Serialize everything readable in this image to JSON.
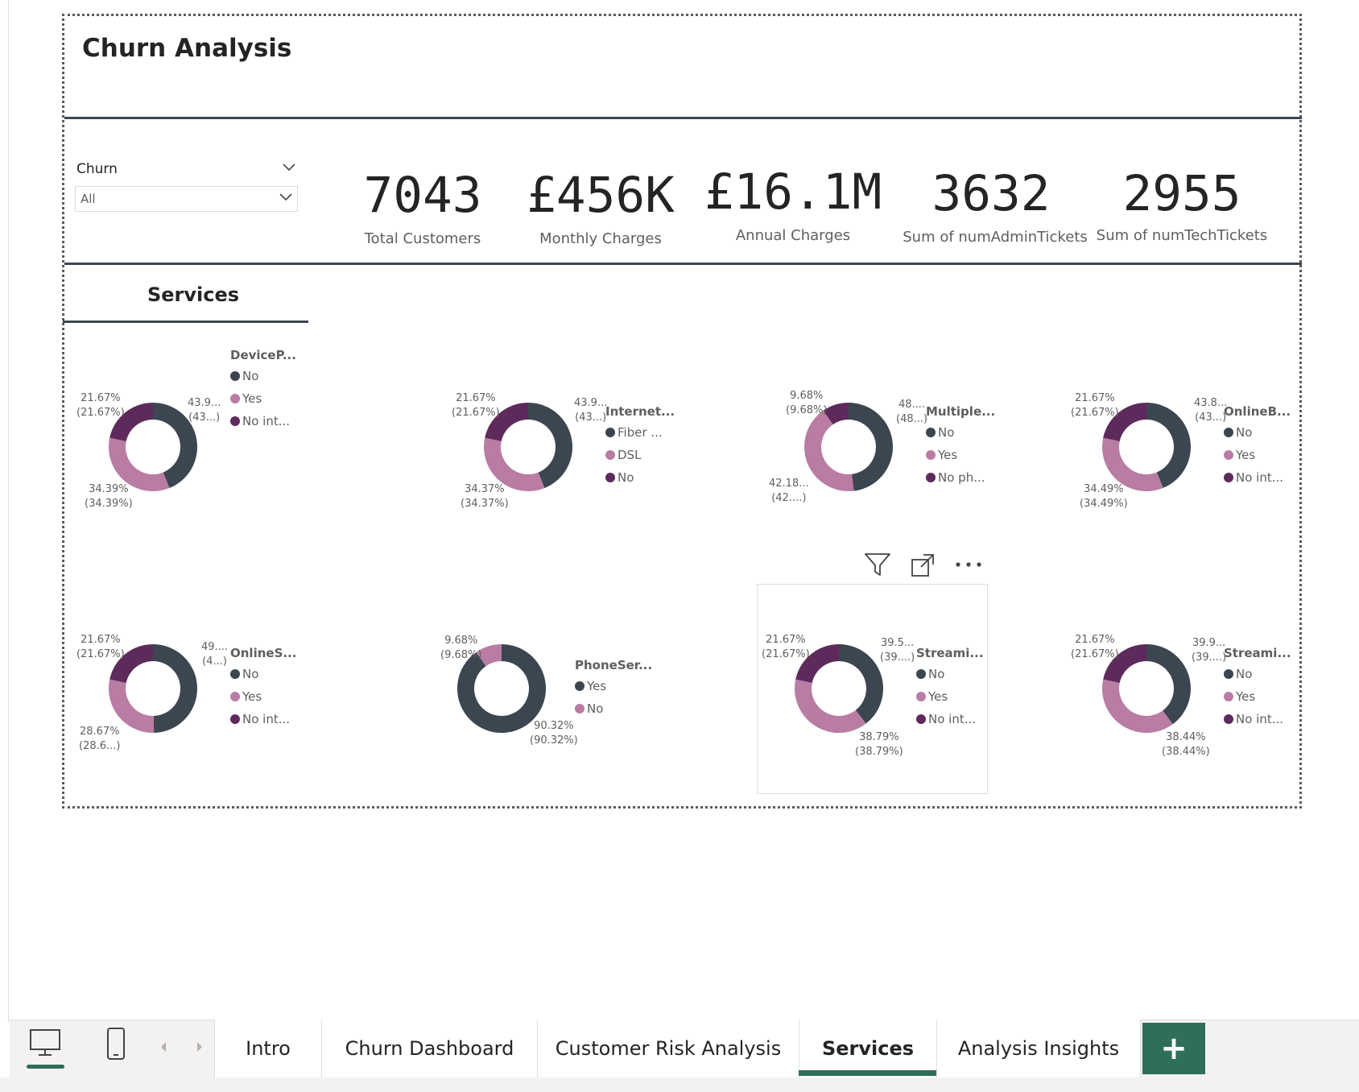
{
  "report": {
    "title": "Churn Analysis"
  },
  "slicer": {
    "title": "Churn",
    "value": "All"
  },
  "kpis": [
    {
      "value": "7043",
      "label": "Total Customers"
    },
    {
      "value": "£456K",
      "label": "Monthly Charges"
    },
    {
      "value": "£16.1M",
      "label": "Annual Charges"
    },
    {
      "value": "3632",
      "label": "Sum of numAdminTickets"
    },
    {
      "value": "2955",
      "label": "Sum of numTechTickets"
    }
  ],
  "section": {
    "title": "Services"
  },
  "colors": {
    "dark": "#3b4650",
    "pink": "#b97ca3",
    "purple": "#5e2a5b",
    "accent": "#2f6e5a"
  },
  "chart_data": [
    {
      "type": "pie",
      "legend_title": "DeviceP...",
      "categories": [
        "No",
        "Yes",
        "No int..."
      ],
      "values": [
        43.94,
        34.39,
        21.67
      ],
      "labels": [
        [
          "43.9...",
          "(43...)"
        ],
        [
          "34.39%",
          "(34.39%)"
        ],
        [
          "21.67%",
          "(21.67%)"
        ]
      ]
    },
    {
      "type": "pie",
      "legend_title": "Internet...",
      "categories": [
        "Fiber ...",
        "DSL",
        "No"
      ],
      "values": [
        43.96,
        34.37,
        21.67
      ],
      "labels": [
        [
          "43.9...",
          "(43...)"
        ],
        [
          "34.37%",
          "(34.37%)"
        ],
        [
          "21.67%",
          "(21.67%)"
        ]
      ]
    },
    {
      "type": "pie",
      "legend_title": "Multiple...",
      "categories": [
        "No",
        "Yes",
        "No ph..."
      ],
      "values": [
        48.13,
        42.18,
        9.68
      ],
      "labels": [
        [
          "48....",
          "(48...)"
        ],
        [
          "42.18...",
          "(42....)"
        ],
        [
          "9.68%",
          "(9.68%)"
        ]
      ]
    },
    {
      "type": "pie",
      "legend_title": "OnlineB...",
      "categories": [
        "No",
        "Yes",
        "No int..."
      ],
      "values": [
        43.84,
        34.49,
        21.67
      ],
      "labels": [
        [
          "43.8...",
          "(43...)"
        ],
        [
          "34.49%",
          "(34.49%)"
        ],
        [
          "21.67%",
          "(21.67%)"
        ]
      ]
    },
    {
      "type": "pie",
      "legend_title": "OnlineS...",
      "categories": [
        "No",
        "Yes",
        "No int..."
      ],
      "values": [
        49.66,
        28.67,
        21.67
      ],
      "labels": [
        [
          "49....",
          "(4...)"
        ],
        [
          "28.67%",
          "(28.6...)"
        ],
        [
          "21.67%",
          "(21.67%)"
        ]
      ]
    },
    {
      "type": "pie",
      "legend_title": "PhoneSer...",
      "categories": [
        "Yes",
        "No"
      ],
      "values": [
        90.32,
        9.68
      ],
      "labels": [
        [
          "90.32%",
          "(90.32%)"
        ],
        [
          "9.68%",
          "(9.68%)"
        ]
      ]
    },
    {
      "type": "pie",
      "legend_title": "Streami...",
      "categories": [
        "No",
        "Yes",
        "No int..."
      ],
      "values": [
        39.54,
        38.79,
        21.67
      ],
      "labels": [
        [
          "39.5...",
          "(39....)"
        ],
        [
          "38.79%",
          "(38.79%)"
        ],
        [
          "21.67%",
          "(21.67%)"
        ]
      ]
    },
    {
      "type": "pie",
      "legend_title": "Streami...",
      "categories": [
        "No",
        "Yes",
        "No int..."
      ],
      "values": [
        39.9,
        38.44,
        21.67
      ],
      "labels": [
        [
          "39.9...",
          "(39....)"
        ],
        [
          "38.44%",
          "(38.44%)"
        ],
        [
          "21.67%",
          "(21.67%)"
        ]
      ]
    }
  ],
  "tabs": [
    {
      "label": "Intro"
    },
    {
      "label": "Churn Dashboard"
    },
    {
      "label": "Customer Risk Analysis"
    },
    {
      "label": "Services",
      "active": true
    },
    {
      "label": "Analysis Insights"
    }
  ],
  "add_page": {
    "label": "+"
  },
  "icons": {
    "desktop": "desktop-view-icon",
    "mobile": "mobile-view-icon",
    "filter": "filter-icon",
    "focus": "focus-mode-icon",
    "more": "more-options-icon"
  }
}
